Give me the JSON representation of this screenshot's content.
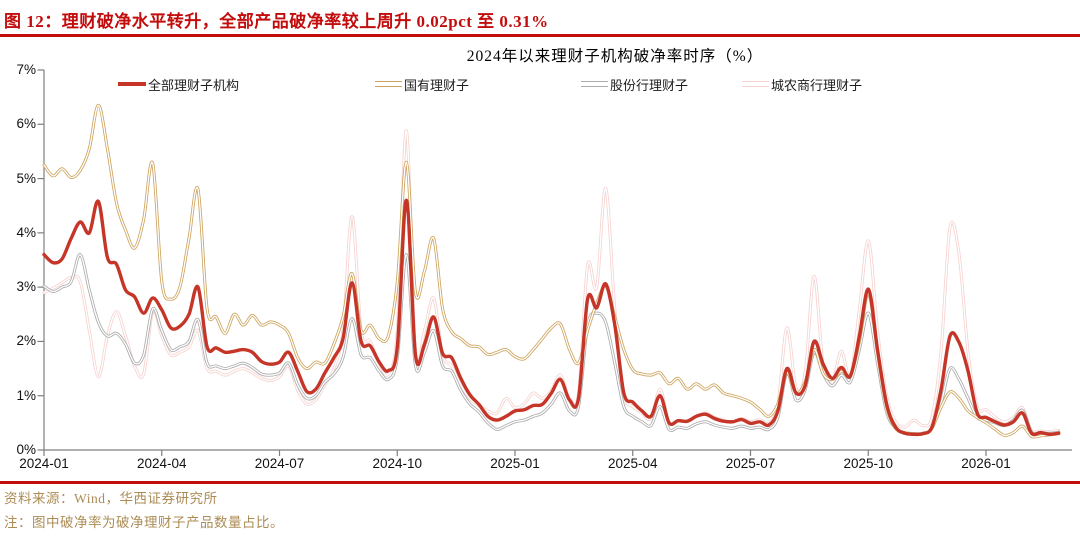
{
  "header": {
    "caption": "图 12：理财破净水平转升，全部产品破净率较上周升 0.02pct 至 0.31%"
  },
  "footer": {
    "source": "资料来源：Wind，华西证券研究所",
    "note": "注：图中破净率为破净理财子产品数量占比。"
  },
  "colors": {
    "accent_red": "#C30D0D",
    "series_red": "#C53528",
    "series_gold": "#CDA45F",
    "series_gray": "#ACACAC",
    "series_pink": "#F5D3D0",
    "footer_tan": "#AC8C55",
    "axis_line": "#7F7F7F"
  },
  "chart_data": {
    "type": "line",
    "title": "2024年以来理财子机构破净率时序（%）",
    "x_unit": "week",
    "x_start": "2024-01",
    "x_end": "2026-02",
    "xticks": [
      "2024-01",
      "2024-04",
      "2024-07",
      "2024-10",
      "2025-01",
      "2025-04",
      "2025-07",
      "2025-10",
      "2026-01"
    ],
    "yticks": [
      "0%",
      "1%",
      "2%",
      "3%",
      "4%",
      "5%",
      "6%",
      "7%"
    ],
    "ylim": [
      0,
      7
    ],
    "grid": false,
    "legend_position": "top",
    "last_point_note": "全部理财子机构最新值0.31%，较上周升0.02pct",
    "series": [
      {
        "name": "全部理财子机构",
        "color": "#C53528",
        "style": "solid",
        "values": [
          3.6,
          3.45,
          3.52,
          3.9,
          4.2,
          4.0,
          4.58,
          3.55,
          3.42,
          2.95,
          2.82,
          2.52,
          2.8,
          2.58,
          2.25,
          2.28,
          2.5,
          3.0,
          1.9,
          1.88,
          1.8,
          1.82,
          1.85,
          1.8,
          1.63,
          1.58,
          1.62,
          1.8,
          1.45,
          1.08,
          1.12,
          1.42,
          1.7,
          2.05,
          3.08,
          2.0,
          1.92,
          1.62,
          1.46,
          1.9,
          4.6,
          1.75,
          1.95,
          2.45,
          1.78,
          1.7,
          1.32,
          1.02,
          0.84,
          0.62,
          0.55,
          0.62,
          0.72,
          0.74,
          0.82,
          0.84,
          1.05,
          1.3,
          0.92,
          0.95,
          2.78,
          2.62,
          3.06,
          2.3,
          1.05,
          0.88,
          0.72,
          0.62,
          1.0,
          0.5,
          0.54,
          0.53,
          0.62,
          0.66,
          0.58,
          0.53,
          0.52,
          0.56,
          0.49,
          0.52,
          0.46,
          0.72,
          1.5,
          1.05,
          1.18,
          2.0,
          1.58,
          1.32,
          1.52,
          1.36,
          2.1,
          2.96,
          1.85,
          0.85,
          0.42,
          0.31,
          0.29,
          0.3,
          0.42,
          1.1,
          2.1,
          1.98,
          1.45,
          0.68,
          0.6,
          0.52,
          0.46,
          0.52,
          0.68,
          0.31,
          0.32,
          0.29,
          0.31
        ]
      },
      {
        "name": "国有理财子",
        "color": "#CDA45F",
        "style": "hollow",
        "values": [
          5.25,
          5.05,
          5.18,
          5.02,
          5.15,
          5.55,
          6.35,
          5.55,
          4.55,
          4.05,
          3.72,
          4.25,
          5.28,
          3.1,
          2.78,
          3.0,
          3.9,
          4.8,
          2.6,
          2.45,
          2.15,
          2.5,
          2.3,
          2.48,
          2.3,
          2.36,
          2.3,
          2.15,
          1.7,
          1.5,
          1.62,
          1.6,
          1.95,
          2.45,
          3.25,
          2.2,
          2.3,
          2.05,
          2.1,
          3.1,
          5.3,
          2.9,
          3.3,
          3.9,
          2.6,
          2.18,
          2.05,
          1.92,
          1.9,
          1.76,
          1.8,
          1.85,
          1.72,
          1.68,
          1.85,
          2.05,
          2.25,
          2.32,
          1.85,
          1.6,
          2.2,
          2.7,
          3.02,
          2.45,
          1.85,
          1.48,
          1.4,
          1.38,
          1.42,
          1.22,
          1.32,
          1.12,
          1.22,
          1.12,
          1.2,
          1.05,
          1.0,
          0.95,
          0.88,
          0.75,
          0.62,
          0.85,
          1.42,
          1.05,
          1.25,
          1.85,
          1.4,
          1.3,
          1.45,
          1.38,
          2.0,
          2.88,
          1.8,
          0.8,
          0.4,
          0.32,
          0.3,
          0.3,
          0.4,
          0.78,
          1.07,
          0.95,
          0.72,
          0.6,
          0.5,
          0.38,
          0.27,
          0.32,
          0.44,
          0.25,
          0.26,
          0.28,
          0.3
        ]
      },
      {
        "name": "股份行理财子",
        "color": "#ACACAC",
        "style": "hollow",
        "values": [
          3.02,
          2.92,
          3.0,
          3.1,
          3.6,
          2.95,
          2.35,
          2.1,
          2.15,
          1.95,
          1.6,
          1.75,
          2.6,
          2.2,
          1.85,
          1.9,
          2.0,
          2.4,
          1.6,
          1.55,
          1.5,
          1.55,
          1.6,
          1.52,
          1.4,
          1.38,
          1.42,
          1.6,
          1.2,
          0.95,
          1.0,
          1.25,
          1.4,
          1.7,
          2.42,
          1.75,
          1.7,
          1.45,
          1.3,
          1.7,
          3.6,
          1.55,
          1.8,
          2.2,
          1.55,
          1.45,
          1.1,
          0.85,
          0.7,
          0.5,
          0.38,
          0.45,
          0.52,
          0.55,
          0.62,
          0.68,
          0.85,
          1.05,
          0.72,
          0.8,
          2.3,
          2.52,
          2.35,
          1.6,
          0.8,
          0.62,
          0.52,
          0.45,
          0.8,
          0.38,
          0.42,
          0.4,
          0.48,
          0.52,
          0.46,
          0.42,
          0.4,
          0.44,
          0.4,
          0.42,
          0.38,
          0.6,
          1.42,
          0.92,
          1.1,
          1.8,
          1.4,
          1.18,
          1.38,
          1.25,
          1.85,
          2.52,
          1.6,
          0.7,
          0.4,
          0.32,
          0.3,
          0.31,
          0.4,
          0.85,
          1.5,
          1.3,
          0.95,
          0.6,
          0.55,
          0.5,
          0.45,
          0.55,
          0.73,
          0.33,
          0.32,
          0.31,
          0.33
        ]
      },
      {
        "name": "城农商行理财子",
        "color": "#F5D3D0",
        "style": "hollow",
        "values": [
          2.9,
          2.98,
          3.08,
          3.18,
          3.1,
          2.2,
          1.35,
          2.1,
          2.55,
          2.1,
          1.55,
          1.4,
          2.55,
          2.1,
          1.75,
          1.8,
          1.9,
          2.2,
          1.5,
          1.45,
          1.38,
          1.45,
          1.5,
          1.42,
          1.32,
          1.28,
          1.35,
          1.55,
          1.1,
          0.85,
          0.92,
          1.2,
          1.5,
          2.2,
          4.3,
          2.2,
          2.0,
          1.6,
          1.4,
          2.2,
          5.88,
          1.8,
          2.2,
          2.8,
          1.75,
          1.55,
          1.2,
          0.95,
          0.82,
          0.72,
          0.68,
          0.95,
          0.78,
          0.85,
          1.05,
          0.95,
          1.1,
          1.38,
          0.95,
          1.05,
          3.4,
          3.0,
          4.82,
          2.6,
          1.05,
          0.8,
          0.68,
          0.58,
          1.12,
          0.5,
          0.55,
          0.52,
          0.62,
          0.68,
          0.6,
          0.55,
          0.52,
          0.58,
          0.52,
          0.56,
          0.5,
          0.85,
          2.25,
          1.15,
          1.4,
          3.2,
          1.55,
          1.25,
          1.82,
          1.35,
          2.6,
          3.85,
          2.2,
          1.0,
          0.52,
          0.42,
          0.55,
          0.45,
          0.6,
          1.8,
          4.1,
          3.6,
          1.8,
          0.8,
          0.74,
          0.6,
          0.52,
          0.6,
          0.78,
          0.36,
          0.35,
          0.34,
          0.36
        ]
      }
    ]
  }
}
